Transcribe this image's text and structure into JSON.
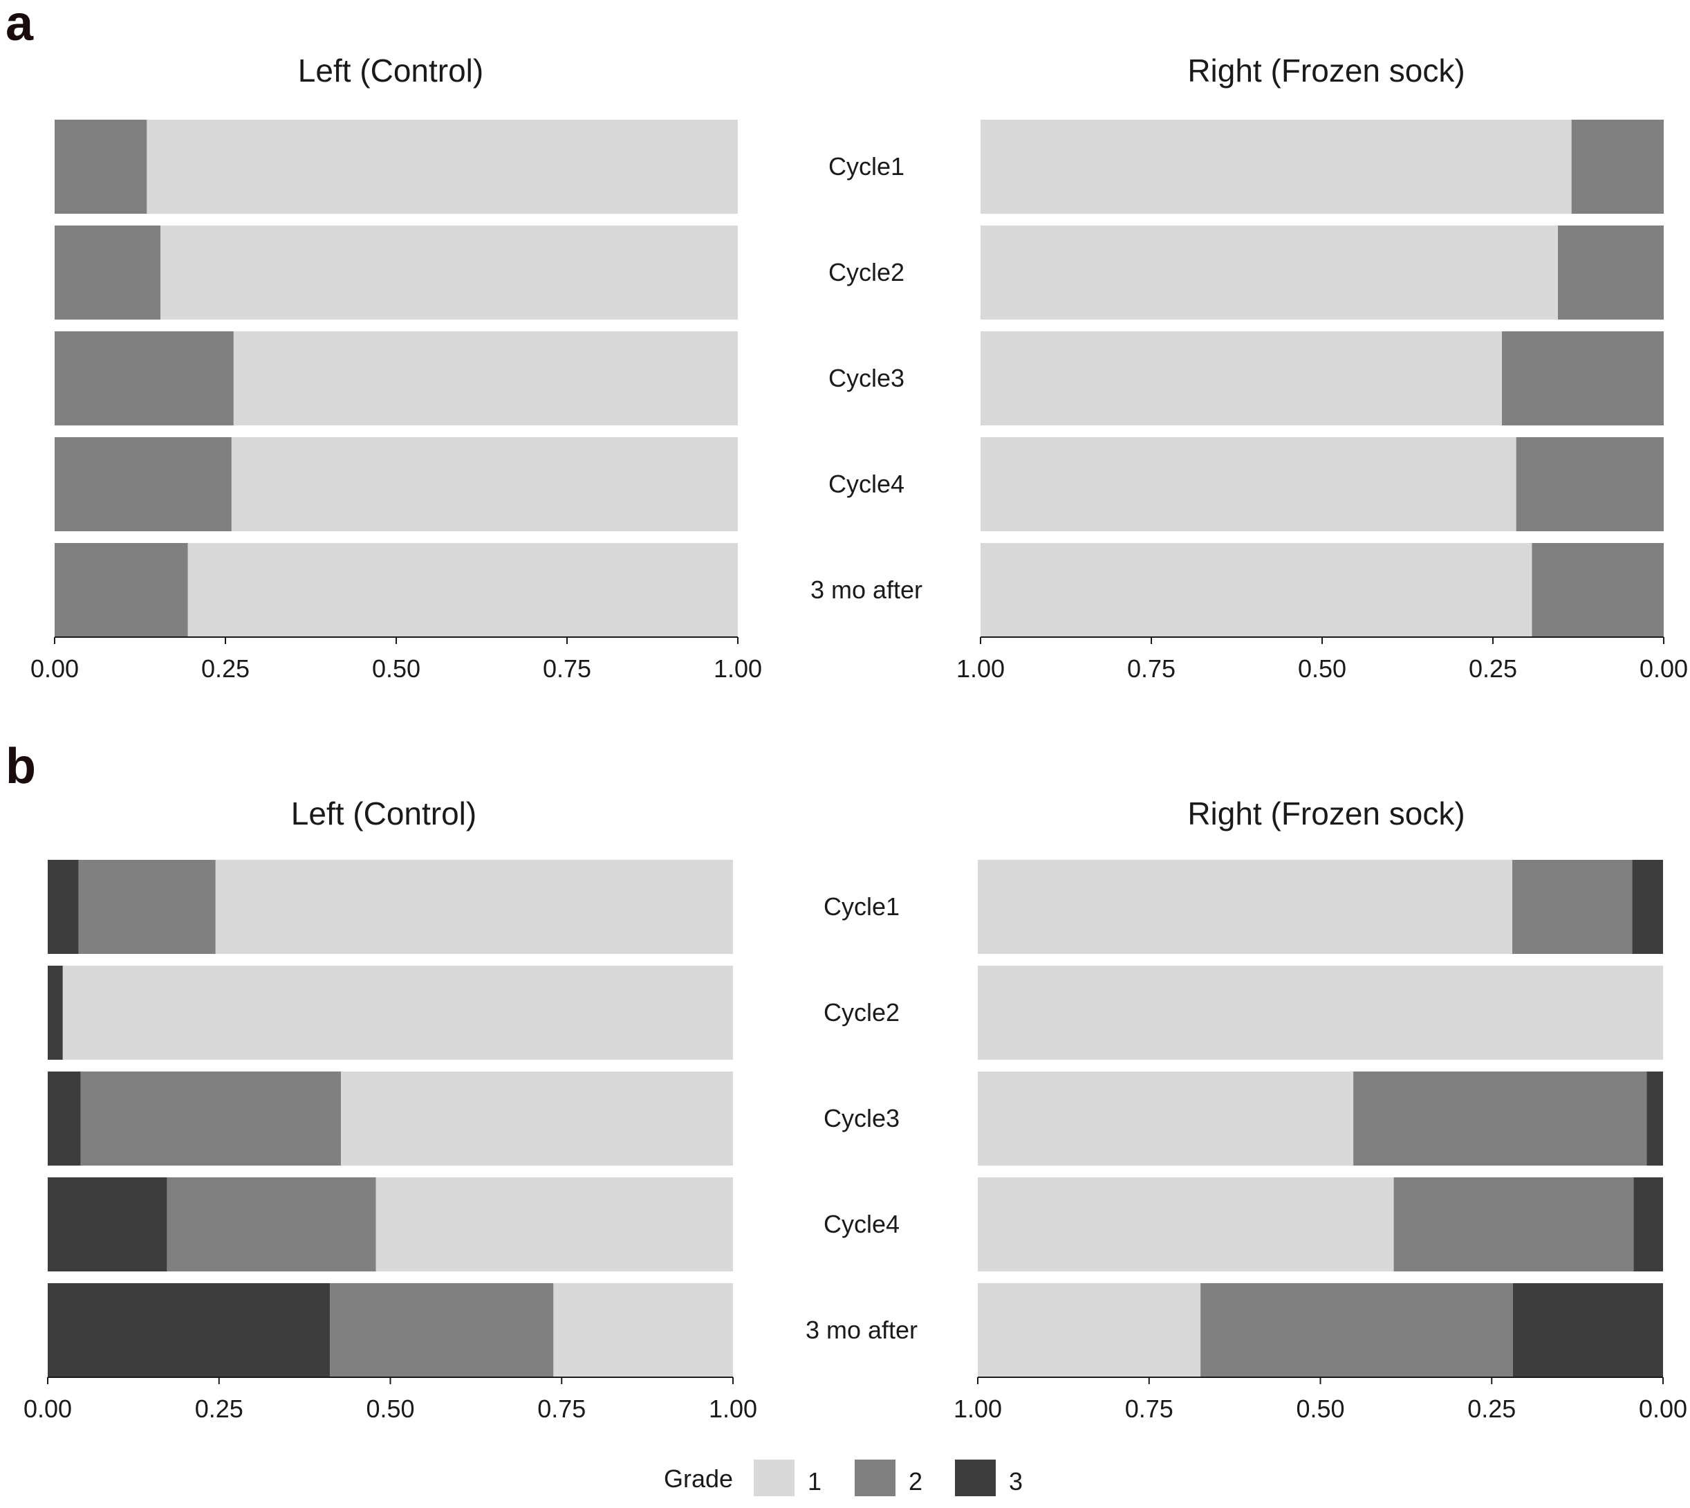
{
  "figure": {
    "panel_labels": [
      "a",
      "b"
    ],
    "legend": {
      "title": "Grade",
      "entries": [
        {
          "label": "1",
          "color": "#d9d9d9"
        },
        {
          "label": "2",
          "color": "#808080"
        },
        {
          "label": "3",
          "color": "#3d3d3d"
        }
      ]
    }
  },
  "chart_data": [
    {
      "panel": "a",
      "type": "bar",
      "orientation": "horizontal",
      "stacked": true,
      "title": "Left (Control)",
      "categories": [
        "Cycle1",
        "Cycle2",
        "Cycle3",
        "Cycle4",
        "3 mo after"
      ],
      "series": [
        {
          "name": "3",
          "values": [
            0,
            0,
            0,
            0,
            0
          ]
        },
        {
          "name": "2",
          "values": [
            0.135,
            0.155,
            0.262,
            0.259,
            0.195
          ]
        },
        {
          "name": "1",
          "values": [
            0.865,
            0.845,
            0.738,
            0.741,
            0.805
          ]
        }
      ],
      "xlim": [
        0,
        1
      ],
      "ticks": [
        0,
        0.25,
        0.5,
        0.75,
        1
      ],
      "tick_labels": [
        "0.00",
        "0.25",
        "0.50",
        "0.75",
        "1.00"
      ],
      "reversed": false
    },
    {
      "panel": "a",
      "type": "bar",
      "orientation": "horizontal",
      "stacked": true,
      "title": "Right (Frozen sock)",
      "categories": [
        "Cycle1",
        "Cycle2",
        "Cycle3",
        "Cycle4",
        "3 mo after"
      ],
      "series": [
        {
          "name": "3",
          "values": [
            0,
            0,
            0,
            0,
            0
          ]
        },
        {
          "name": "2",
          "values": [
            0.135,
            0.155,
            0.237,
            0.216,
            0.193
          ]
        },
        {
          "name": "1",
          "values": [
            0.865,
            0.845,
            0.763,
            0.784,
            0.807
          ]
        }
      ],
      "xlim": [
        0,
        1
      ],
      "ticks": [
        0,
        0.25,
        0.5,
        0.75,
        1
      ],
      "tick_labels": [
        "0.00",
        "0.25",
        "0.50",
        "0.75",
        "1.00"
      ],
      "reversed": true
    },
    {
      "panel": "b",
      "type": "bar",
      "orientation": "horizontal",
      "stacked": true,
      "title": "Left (Control)",
      "categories": [
        "Cycle1",
        "Cycle2",
        "Cycle3",
        "Cycle4",
        "3 mo after"
      ],
      "series": [
        {
          "name": "3",
          "values": [
            0.045,
            0.022,
            0.048,
            0.174,
            0.412
          ]
        },
        {
          "name": "2",
          "values": [
            0.2,
            0,
            0.38,
            0.305,
            0.326
          ]
        },
        {
          "name": "1",
          "values": [
            0.755,
            0.978,
            0.572,
            0.521,
            0.262
          ]
        }
      ],
      "xlim": [
        0,
        1
      ],
      "ticks": [
        0,
        0.25,
        0.5,
        0.75,
        1
      ],
      "tick_labels": [
        "0.00",
        "0.25",
        "0.50",
        "0.75",
        "1.00"
      ],
      "reversed": false
    },
    {
      "panel": "b",
      "type": "bar",
      "orientation": "horizontal",
      "stacked": true,
      "title": "Right (Frozen sock)",
      "categories": [
        "Cycle1",
        "Cycle2",
        "Cycle3",
        "Cycle4",
        "3 mo after"
      ],
      "series": [
        {
          "name": "3",
          "values": [
            0.045,
            0,
            0.024,
            0.043,
            0.219
          ]
        },
        {
          "name": "2",
          "values": [
            0.175,
            0,
            0.428,
            0.35,
            0.456
          ]
        },
        {
          "name": "1",
          "values": [
            0.78,
            1,
            0.548,
            0.607,
            0.325
          ]
        }
      ],
      "xlim": [
        0,
        1
      ],
      "ticks": [
        0,
        0.25,
        0.5,
        0.75,
        1
      ],
      "tick_labels": [
        "0.00",
        "0.25",
        "0.50",
        "0.75",
        "1.00"
      ],
      "reversed": true
    }
  ]
}
